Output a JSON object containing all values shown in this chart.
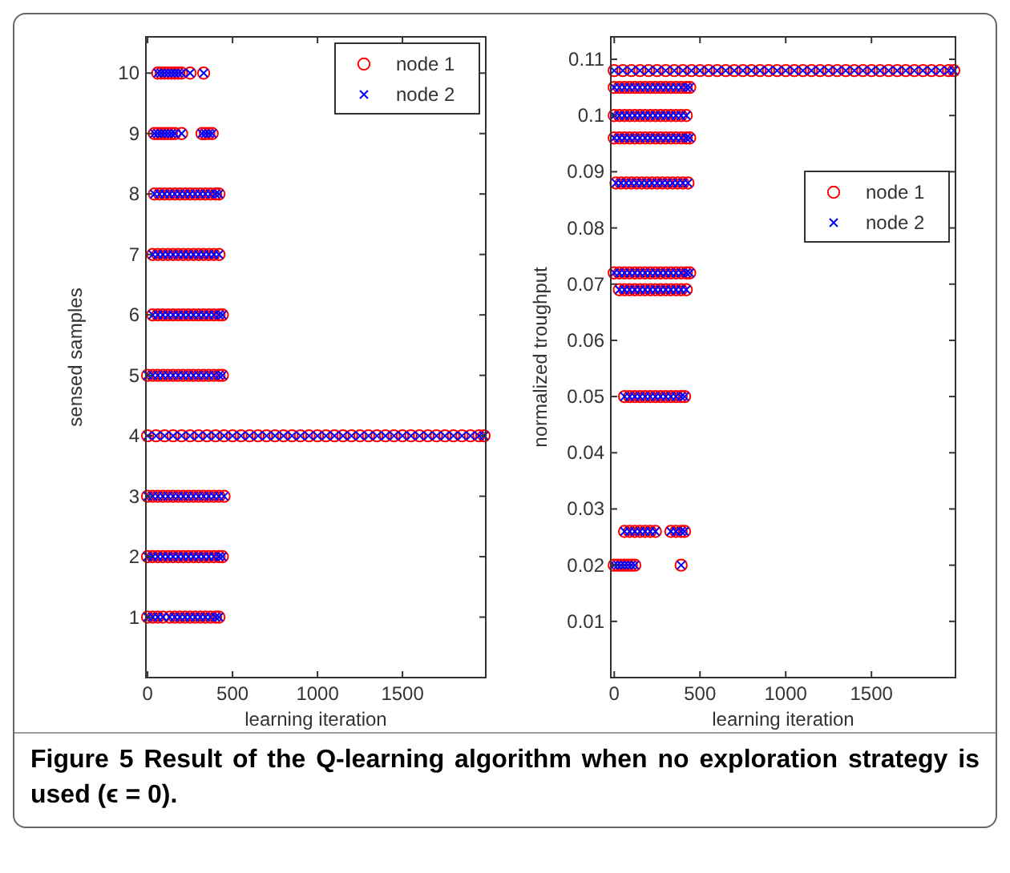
{
  "chart_data": [
    {
      "type": "scatter",
      "xlabel": "learning iteration",
      "ylabel": "sensed samples",
      "xlim": [
        -10,
        1990
      ],
      "ylim": [
        0,
        10.6
      ],
      "xticks": [
        0,
        500,
        1000,
        1500
      ],
      "yticks": [
        1,
        2,
        3,
        4,
        5,
        6,
        7,
        8,
        9,
        10
      ],
      "legend": "top right",
      "annotations": [
        "Figure 5 Result of the Q-learning algorithm when no exploration strategy is used (ϵ = 0)."
      ],
      "series": [
        {
          "name": "node 1",
          "color": "#ff0000",
          "marker": "circle",
          "x": [
            60,
            80,
            100,
            120,
            140,
            160,
            180,
            200,
            250,
            330,
            40,
            60,
            80,
            100,
            120,
            140,
            160,
            200,
            320,
            340,
            360,
            380,
            40,
            70,
            100,
            130,
            160,
            190,
            220,
            250,
            280,
            310,
            340,
            370,
            400,
            420,
            30,
            60,
            90,
            120,
            150,
            180,
            210,
            240,
            270,
            300,
            330,
            360,
            390,
            420,
            30,
            60,
            90,
            120,
            150,
            180,
            210,
            240,
            270,
            300,
            330,
            360,
            390,
            420,
            440,
            0,
            30,
            60,
            90,
            120,
            150,
            180,
            210,
            240,
            270,
            300,
            330,
            360,
            390,
            420,
            440,
            0,
            50,
            100,
            150,
            200,
            250,
            300,
            350,
            400,
            450,
            500,
            550,
            600,
            650,
            700,
            750,
            800,
            850,
            900,
            950,
            1000,
            1050,
            1100,
            1150,
            1200,
            1250,
            1300,
            1350,
            1400,
            1450,
            1500,
            1550,
            1600,
            1650,
            1700,
            1750,
            1800,
            1850,
            1900,
            1950,
            1980,
            0,
            30,
            60,
            90,
            120,
            150,
            180,
            210,
            240,
            270,
            300,
            330,
            360,
            390,
            420,
            450,
            0,
            30,
            60,
            90,
            120,
            150,
            180,
            210,
            240,
            270,
            300,
            330,
            360,
            390,
            420,
            440,
            0,
            30,
            60,
            90,
            130,
            160,
            190,
            220,
            250,
            280,
            310,
            340,
            370,
            400,
            420
          ],
          "values": [
            10,
            10,
            10,
            10,
            10,
            10,
            10,
            10,
            10,
            10,
            9,
            9,
            9,
            9,
            9,
            9,
            9,
            9,
            9,
            9,
            9,
            9,
            8,
            8,
            8,
            8,
            8,
            8,
            8,
            8,
            8,
            8,
            8,
            8,
            8,
            8,
            7,
            7,
            7,
            7,
            7,
            7,
            7,
            7,
            7,
            7,
            7,
            7,
            7,
            7,
            6,
            6,
            6,
            6,
            6,
            6,
            6,
            6,
            6,
            6,
            6,
            6,
            6,
            6,
            6,
            5,
            5,
            5,
            5,
            5,
            5,
            5,
            5,
            5,
            5,
            5,
            5,
            5,
            5,
            5,
            5,
            4,
            4,
            4,
            4,
            4,
            4,
            4,
            4,
            4,
            4,
            4,
            4,
            4,
            4,
            4,
            4,
            4,
            4,
            4,
            4,
            4,
            4,
            4,
            4,
            4,
            4,
            4,
            4,
            4,
            4,
            4,
            4,
            4,
            4,
            4,
            4,
            4,
            4,
            4,
            4,
            4,
            3,
            3,
            3,
            3,
            3,
            3,
            3,
            3,
            3,
            3,
            3,
            3,
            3,
            3,
            3,
            3,
            2,
            2,
            2,
            2,
            2,
            2,
            2,
            2,
            2,
            2,
            2,
            2,
            2,
            2,
            2,
            2,
            1,
            1,
            1,
            1,
            1,
            1,
            1,
            1,
            1,
            1,
            1,
            1,
            1,
            1,
            1
          ]
        },
        {
          "name": "node 2",
          "color": "#0000ff",
          "marker": "cross",
          "x": [
            60,
            80,
            100,
            120,
            140,
            160,
            180,
            200,
            250,
            330,
            40,
            60,
            80,
            100,
            120,
            140,
            160,
            200,
            320,
            340,
            360,
            380,
            40,
            70,
            100,
            130,
            160,
            190,
            220,
            250,
            280,
            310,
            340,
            370,
            400,
            420,
            30,
            60,
            90,
            120,
            150,
            180,
            210,
            240,
            270,
            300,
            330,
            360,
            390,
            420,
            30,
            60,
            90,
            120,
            150,
            180,
            210,
            240,
            270,
            300,
            330,
            360,
            390,
            420,
            440,
            0,
            30,
            60,
            90,
            120,
            150,
            180,
            210,
            240,
            270,
            300,
            330,
            360,
            390,
            420,
            440,
            0,
            50,
            100,
            150,
            200,
            250,
            300,
            350,
            400,
            450,
            500,
            550,
            600,
            650,
            700,
            750,
            800,
            850,
            900,
            950,
            1000,
            1050,
            1100,
            1150,
            1200,
            1250,
            1300,
            1350,
            1400,
            1450,
            1500,
            1550,
            1600,
            1650,
            1700,
            1750,
            1800,
            1850,
            1900,
            1950,
            1980,
            0,
            30,
            60,
            90,
            120,
            150,
            180,
            210,
            240,
            270,
            300,
            330,
            360,
            390,
            420,
            450,
            0,
            30,
            60,
            90,
            120,
            150,
            180,
            210,
            240,
            270,
            300,
            330,
            360,
            390,
            420,
            440,
            0,
            30,
            60,
            90,
            130,
            160,
            190,
            220,
            250,
            280,
            310,
            340,
            370,
            400,
            420
          ],
          "values": [
            10,
            10,
            10,
            10,
            10,
            10,
            10,
            10,
            10,
            10,
            9,
            9,
            9,
            9,
            9,
            9,
            9,
            9,
            9,
            9,
            9,
            9,
            8,
            8,
            8,
            8,
            8,
            8,
            8,
            8,
            8,
            8,
            8,
            8,
            8,
            8,
            7,
            7,
            7,
            7,
            7,
            7,
            7,
            7,
            7,
            7,
            7,
            7,
            7,
            7,
            6,
            6,
            6,
            6,
            6,
            6,
            6,
            6,
            6,
            6,
            6,
            6,
            6,
            6,
            6,
            5,
            5,
            5,
            5,
            5,
            5,
            5,
            5,
            5,
            5,
            5,
            5,
            5,
            5,
            5,
            5,
            4,
            4,
            4,
            4,
            4,
            4,
            4,
            4,
            4,
            4,
            4,
            4,
            4,
            4,
            4,
            4,
            4,
            4,
            4,
            4,
            4,
            4,
            4,
            4,
            4,
            4,
            4,
            4,
            4,
            4,
            4,
            4,
            4,
            4,
            4,
            4,
            4,
            4,
            4,
            4,
            4,
            3,
            3,
            3,
            3,
            3,
            3,
            3,
            3,
            3,
            3,
            3,
            3,
            3,
            3,
            3,
            3,
            2,
            2,
            2,
            2,
            2,
            2,
            2,
            2,
            2,
            2,
            2,
            2,
            2,
            2,
            2,
            2,
            1,
            1,
            1,
            1,
            1,
            1,
            1,
            1,
            1,
            1,
            1,
            1,
            1,
            1,
            1
          ]
        }
      ]
    },
    {
      "type": "scatter",
      "xlabel": "learning iteration",
      "ylabel": "normalized troughput",
      "xlim": [
        -20,
        1990
      ],
      "ylim": [
        0,
        0.114
      ],
      "xticks": [
        0,
        500,
        1000,
        1500
      ],
      "yticks": [
        0.01,
        0.02,
        0.03,
        0.04,
        0.05,
        0.06,
        0.07,
        0.08,
        0.09,
        0.1,
        0.11
      ],
      "legend": "right",
      "series": [
        {
          "name": "node 1",
          "color": "#ff0000",
          "marker": "circle",
          "x": [
            0,
            50,
            100,
            150,
            200,
            250,
            300,
            350,
            400,
            450,
            500,
            550,
            600,
            650,
            700,
            750,
            800,
            850,
            900,
            950,
            1000,
            1050,
            1100,
            1150,
            1200,
            1250,
            1300,
            1350,
            1400,
            1450,
            1500,
            1550,
            1600,
            1650,
            1700,
            1750,
            1800,
            1850,
            1900,
            1950,
            1980,
            0,
            30,
            60,
            90,
            120,
            150,
            180,
            210,
            240,
            270,
            300,
            330,
            360,
            390,
            420,
            440,
            0,
            30,
            60,
            90,
            120,
            150,
            180,
            210,
            240,
            270,
            300,
            330,
            360,
            390,
            420,
            0,
            30,
            60,
            90,
            120,
            150,
            180,
            210,
            240,
            270,
            300,
            330,
            360,
            390,
            420,
            440,
            10,
            40,
            70,
            100,
            130,
            160,
            190,
            220,
            250,
            280,
            310,
            340,
            370,
            400,
            430,
            0,
            30,
            60,
            90,
            120,
            150,
            180,
            210,
            240,
            270,
            300,
            330,
            360,
            390,
            420,
            440,
            30,
            60,
            90,
            120,
            150,
            180,
            210,
            240,
            270,
            300,
            330,
            360,
            390,
            420,
            60,
            90,
            120,
            150,
            180,
            210,
            240,
            270,
            300,
            330,
            360,
            390,
            410,
            60,
            90,
            120,
            150,
            180,
            210,
            240,
            330,
            360,
            390,
            410,
            0,
            20,
            40,
            60,
            80,
            100,
            120,
            390
          ],
          "values": [
            0.108,
            0.108,
            0.108,
            0.108,
            0.108,
            0.108,
            0.108,
            0.108,
            0.108,
            0.108,
            0.108,
            0.108,
            0.108,
            0.108,
            0.108,
            0.108,
            0.108,
            0.108,
            0.108,
            0.108,
            0.108,
            0.108,
            0.108,
            0.108,
            0.108,
            0.108,
            0.108,
            0.108,
            0.108,
            0.108,
            0.108,
            0.108,
            0.108,
            0.108,
            0.108,
            0.108,
            0.108,
            0.108,
            0.108,
            0.108,
            0.108,
            0.105,
            0.105,
            0.105,
            0.105,
            0.105,
            0.105,
            0.105,
            0.105,
            0.105,
            0.105,
            0.105,
            0.105,
            0.105,
            0.105,
            0.105,
            0.105,
            0.1,
            0.1,
            0.1,
            0.1,
            0.1,
            0.1,
            0.1,
            0.1,
            0.1,
            0.1,
            0.1,
            0.1,
            0.1,
            0.1,
            0.1,
            0.096,
            0.096,
            0.096,
            0.096,
            0.096,
            0.096,
            0.096,
            0.096,
            0.096,
            0.096,
            0.096,
            0.096,
            0.096,
            0.096,
            0.096,
            0.096,
            0.088,
            0.088,
            0.088,
            0.088,
            0.088,
            0.088,
            0.088,
            0.088,
            0.088,
            0.088,
            0.088,
            0.088,
            0.088,
            0.088,
            0.088,
            0.072,
            0.072,
            0.072,
            0.072,
            0.072,
            0.072,
            0.072,
            0.072,
            0.072,
            0.072,
            0.072,
            0.072,
            0.072,
            0.072,
            0.072,
            0.072,
            0.069,
            0.069,
            0.069,
            0.069,
            0.069,
            0.069,
            0.069,
            0.069,
            0.069,
            0.069,
            0.069,
            0.069,
            0.069,
            0.069,
            0.05,
            0.05,
            0.05,
            0.05,
            0.05,
            0.05,
            0.05,
            0.05,
            0.05,
            0.05,
            0.05,
            0.05,
            0.05,
            0.026,
            0.026,
            0.026,
            0.026,
            0.026,
            0.026,
            0.026,
            0.026,
            0.026,
            0.026,
            0.026,
            0.02,
            0.02,
            0.02,
            0.02,
            0.02,
            0.02,
            0.02,
            0.02
          ]
        },
        {
          "name": "node 2",
          "color": "#0000ff",
          "marker": "cross",
          "x": [
            0,
            50,
            100,
            150,
            200,
            250,
            300,
            350,
            400,
            450,
            500,
            550,
            600,
            650,
            700,
            750,
            800,
            850,
            900,
            950,
            1000,
            1050,
            1100,
            1150,
            1200,
            1250,
            1300,
            1350,
            1400,
            1450,
            1500,
            1550,
            1600,
            1650,
            1700,
            1750,
            1800,
            1850,
            1900,
            1950,
            1980,
            0,
            30,
            60,
            90,
            120,
            150,
            180,
            210,
            240,
            270,
            300,
            330,
            360,
            390,
            420,
            440,
            0,
            30,
            60,
            90,
            120,
            150,
            180,
            210,
            240,
            270,
            300,
            330,
            360,
            390,
            420,
            0,
            30,
            60,
            90,
            120,
            150,
            180,
            210,
            240,
            270,
            300,
            330,
            360,
            390,
            420,
            440,
            10,
            40,
            70,
            100,
            130,
            160,
            190,
            220,
            250,
            280,
            310,
            340,
            370,
            400,
            430,
            0,
            30,
            60,
            90,
            120,
            150,
            180,
            210,
            240,
            270,
            300,
            330,
            360,
            390,
            420,
            440,
            30,
            60,
            90,
            120,
            150,
            180,
            210,
            240,
            270,
            300,
            330,
            360,
            390,
            420,
            60,
            90,
            120,
            150,
            180,
            210,
            240,
            270,
            300,
            330,
            360,
            390,
            410,
            60,
            90,
            120,
            150,
            180,
            210,
            240,
            330,
            360,
            390,
            410,
            0,
            20,
            40,
            60,
            80,
            100,
            120,
            390
          ],
          "values": [
            0.108,
            0.108,
            0.108,
            0.108,
            0.108,
            0.108,
            0.108,
            0.108,
            0.108,
            0.108,
            0.108,
            0.108,
            0.108,
            0.108,
            0.108,
            0.108,
            0.108,
            0.108,
            0.108,
            0.108,
            0.108,
            0.108,
            0.108,
            0.108,
            0.108,
            0.108,
            0.108,
            0.108,
            0.108,
            0.108,
            0.108,
            0.108,
            0.108,
            0.108,
            0.108,
            0.108,
            0.108,
            0.108,
            0.108,
            0.108,
            0.108,
            0.105,
            0.105,
            0.105,
            0.105,
            0.105,
            0.105,
            0.105,
            0.105,
            0.105,
            0.105,
            0.105,
            0.105,
            0.105,
            0.105,
            0.105,
            0.105,
            0.1,
            0.1,
            0.1,
            0.1,
            0.1,
            0.1,
            0.1,
            0.1,
            0.1,
            0.1,
            0.1,
            0.1,
            0.1,
            0.1,
            0.1,
            0.096,
            0.096,
            0.096,
            0.096,
            0.096,
            0.096,
            0.096,
            0.096,
            0.096,
            0.096,
            0.096,
            0.096,
            0.096,
            0.096,
            0.096,
            0.096,
            0.088,
            0.088,
            0.088,
            0.088,
            0.088,
            0.088,
            0.088,
            0.088,
            0.088,
            0.088,
            0.088,
            0.088,
            0.088,
            0.088,
            0.088,
            0.072,
            0.072,
            0.072,
            0.072,
            0.072,
            0.072,
            0.072,
            0.072,
            0.072,
            0.072,
            0.072,
            0.072,
            0.072,
            0.072,
            0.072,
            0.072,
            0.069,
            0.069,
            0.069,
            0.069,
            0.069,
            0.069,
            0.069,
            0.069,
            0.069,
            0.069,
            0.069,
            0.069,
            0.069,
            0.069,
            0.05,
            0.05,
            0.05,
            0.05,
            0.05,
            0.05,
            0.05,
            0.05,
            0.05,
            0.05,
            0.05,
            0.05,
            0.05,
            0.026,
            0.026,
            0.026,
            0.026,
            0.026,
            0.026,
            0.026,
            0.026,
            0.026,
            0.026,
            0.026,
            0.02,
            0.02,
            0.02,
            0.02,
            0.02,
            0.02,
            0.02,
            0.02
          ]
        }
      ]
    }
  ]
}
